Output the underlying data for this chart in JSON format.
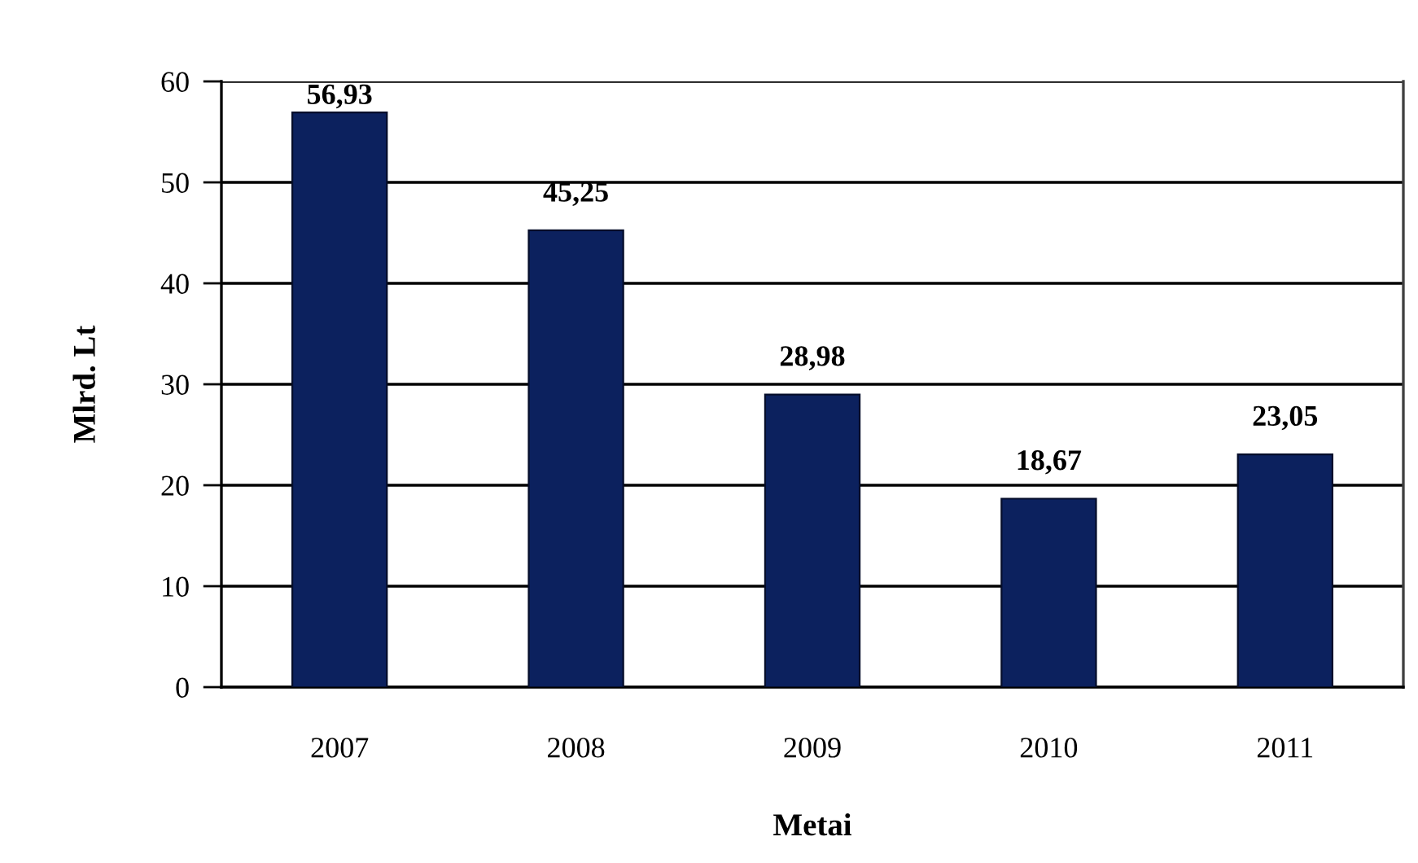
{
  "chart_data": {
    "type": "bar",
    "xlabel": "Metai",
    "ylabel": "Mlrd. Lt",
    "categories": [
      "2007",
      "2008",
      "2009",
      "2010",
      "2011"
    ],
    "values": [
      56.93,
      45.25,
      28.98,
      18.67,
      23.05
    ],
    "value_labels": [
      "56,93",
      "45,25",
      "28,98",
      "18,67",
      "23,05"
    ],
    "color": "#0c215e",
    "ylim": [
      0,
      60
    ],
    "yticks": [
      0,
      10,
      20,
      30,
      40,
      50,
      60
    ],
    "grid": "y",
    "legend": false
  }
}
